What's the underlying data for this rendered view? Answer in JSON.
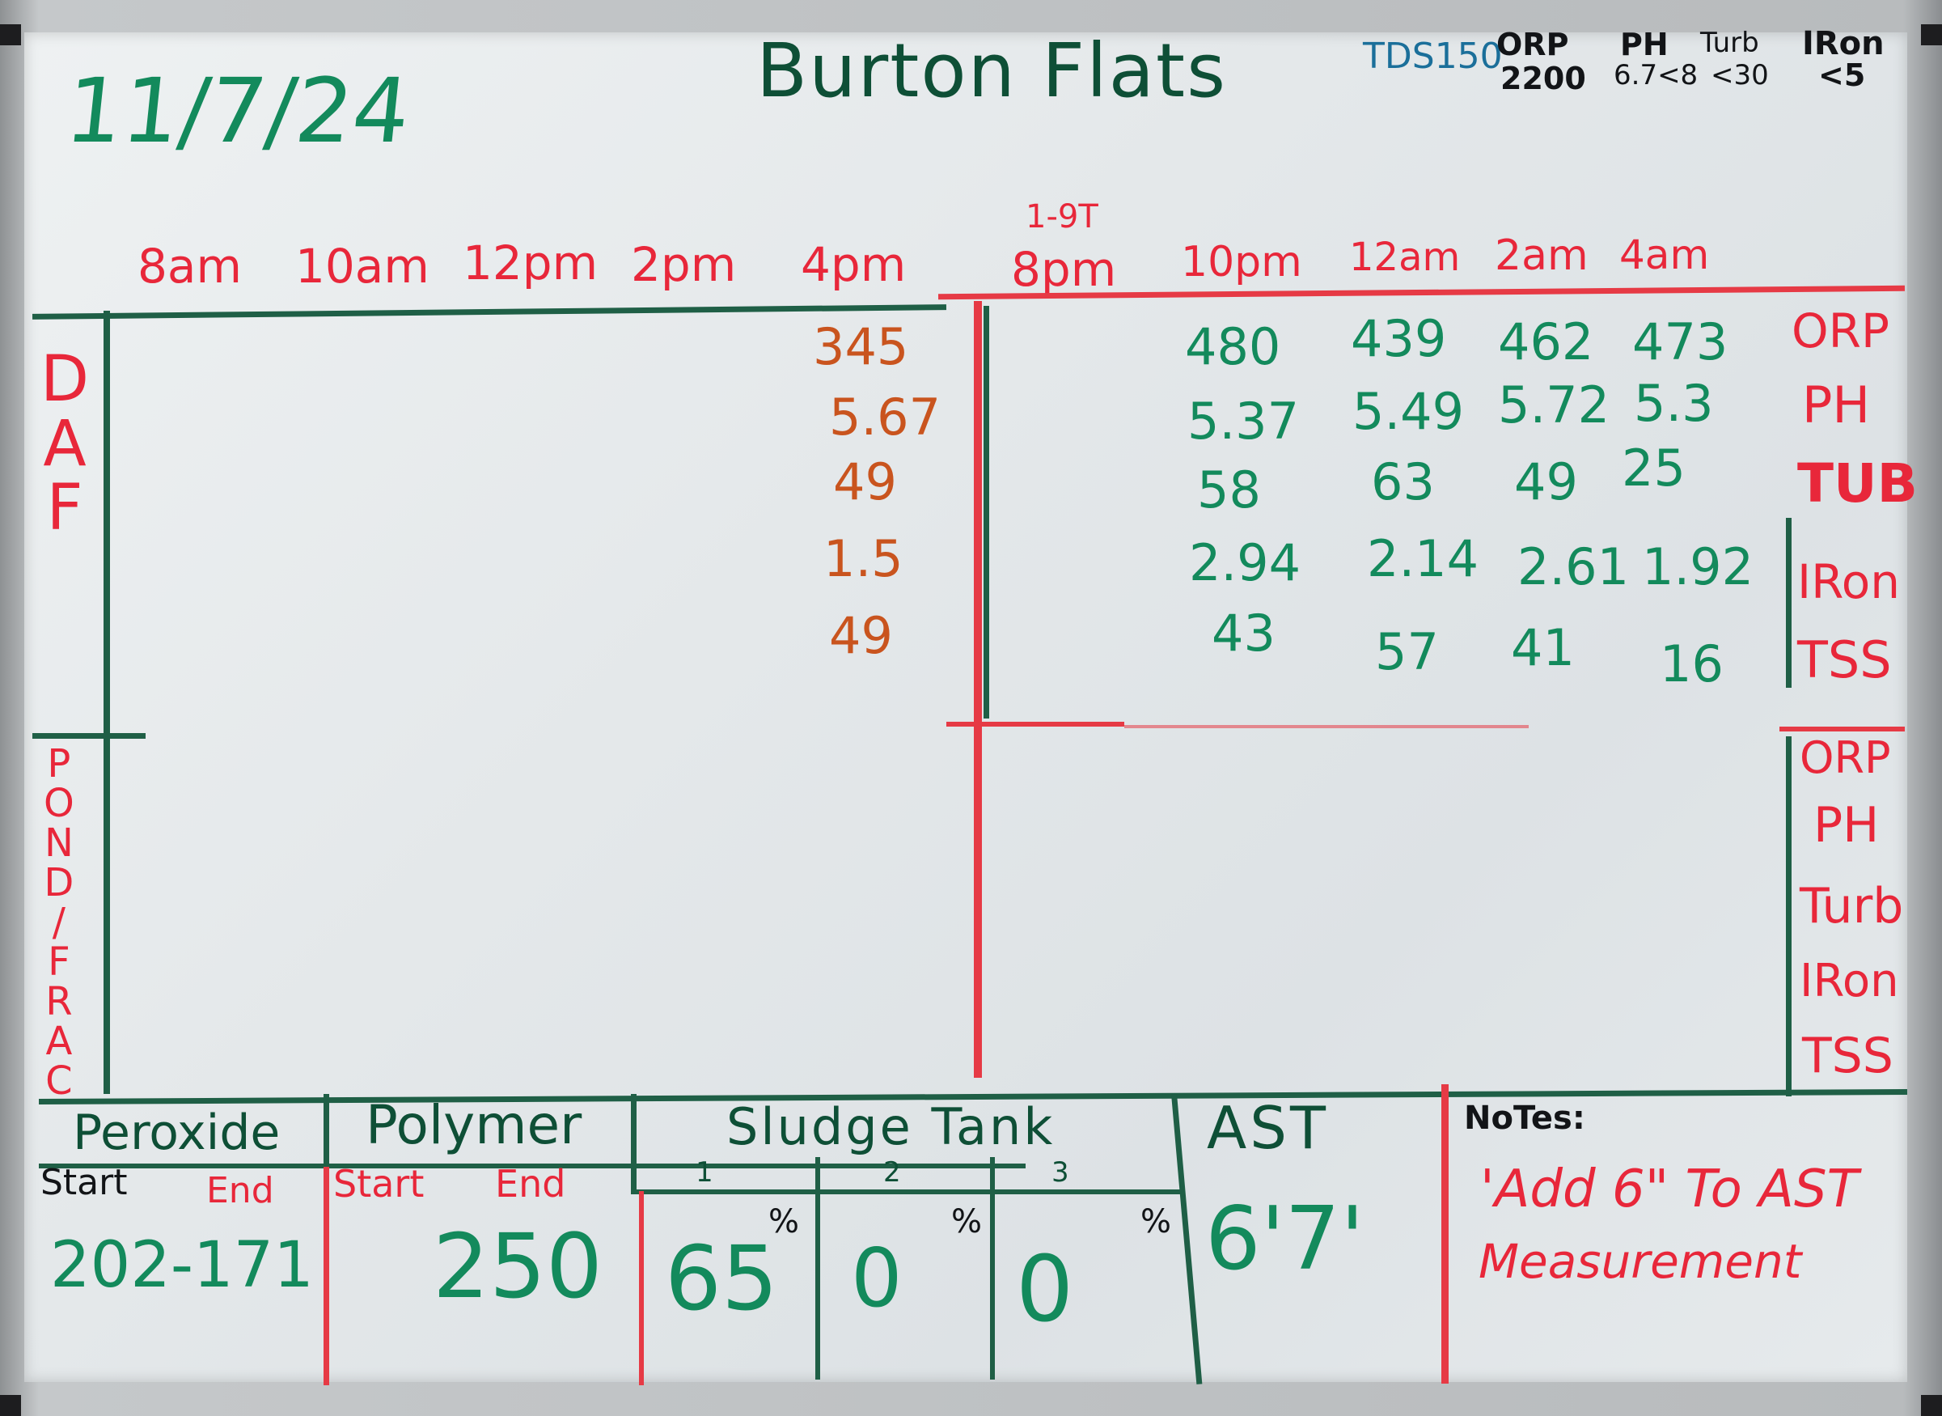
{
  "board": {
    "date": "11/7/24",
    "title": "Burton Flats",
    "limits": {
      "tds": "TDS150",
      "orp_label": "ORP",
      "orp_value": "2200",
      "ph_label": "PH",
      "ph_value": "6.7<8",
      "turb_label": "Turb",
      "turb_value": "<30",
      "iron_label": "IRon",
      "iron_value": "<5"
    },
    "shift_note": "1-9T",
    "times": [
      "8am",
      "10am",
      "12pm",
      "2pm",
      "4pm",
      "8pm",
      "10pm",
      "12am",
      "2am",
      "4am"
    ],
    "daf": {
      "label_letters": [
        "D",
        "A",
        "F"
      ],
      "col_4pm": [
        "345",
        "5.67",
        "49",
        "1.5",
        "49"
      ],
      "col_10pm": [
        "480",
        "5.37",
        "58",
        "2.94",
        "43"
      ],
      "col_12am": [
        "439",
        "5.49",
        "63",
        "2.14",
        "57"
      ],
      "col_2am": [
        "462",
        "5.72",
        "49",
        "2.61",
        "41"
      ],
      "col_4am": [
        "473",
        "5.3",
        "25",
        "1.92",
        "16"
      ],
      "row_labels": [
        "ORP",
        "PH",
        "TUB",
        "IRon",
        "TSS"
      ]
    },
    "pond": {
      "label_letters": [
        "P",
        "O",
        "N",
        "D",
        "/",
        "F",
        "R",
        "A",
        "C"
      ],
      "row_labels": [
        "ORP",
        "PH",
        "Turb",
        "IRon",
        "TSS"
      ]
    },
    "bottom": {
      "peroxide": {
        "header": "Peroxide",
        "start": "Start",
        "end": "End",
        "value": "202-171"
      },
      "polymer": {
        "header": "Polymer",
        "start": "Start",
        "end": "End",
        "value": "250"
      },
      "sludge": {
        "header": "Sludge Tank",
        "cols": [
          "1",
          "2",
          "3"
        ],
        "values": [
          "65",
          "0",
          "0"
        ],
        "pct": "%"
      },
      "ast": {
        "header": "AST",
        "value": "6'7'"
      },
      "notes": {
        "header": "NoTes:",
        "line1": "'Add 6\" To AST",
        "line2": "Measurement"
      }
    }
  }
}
